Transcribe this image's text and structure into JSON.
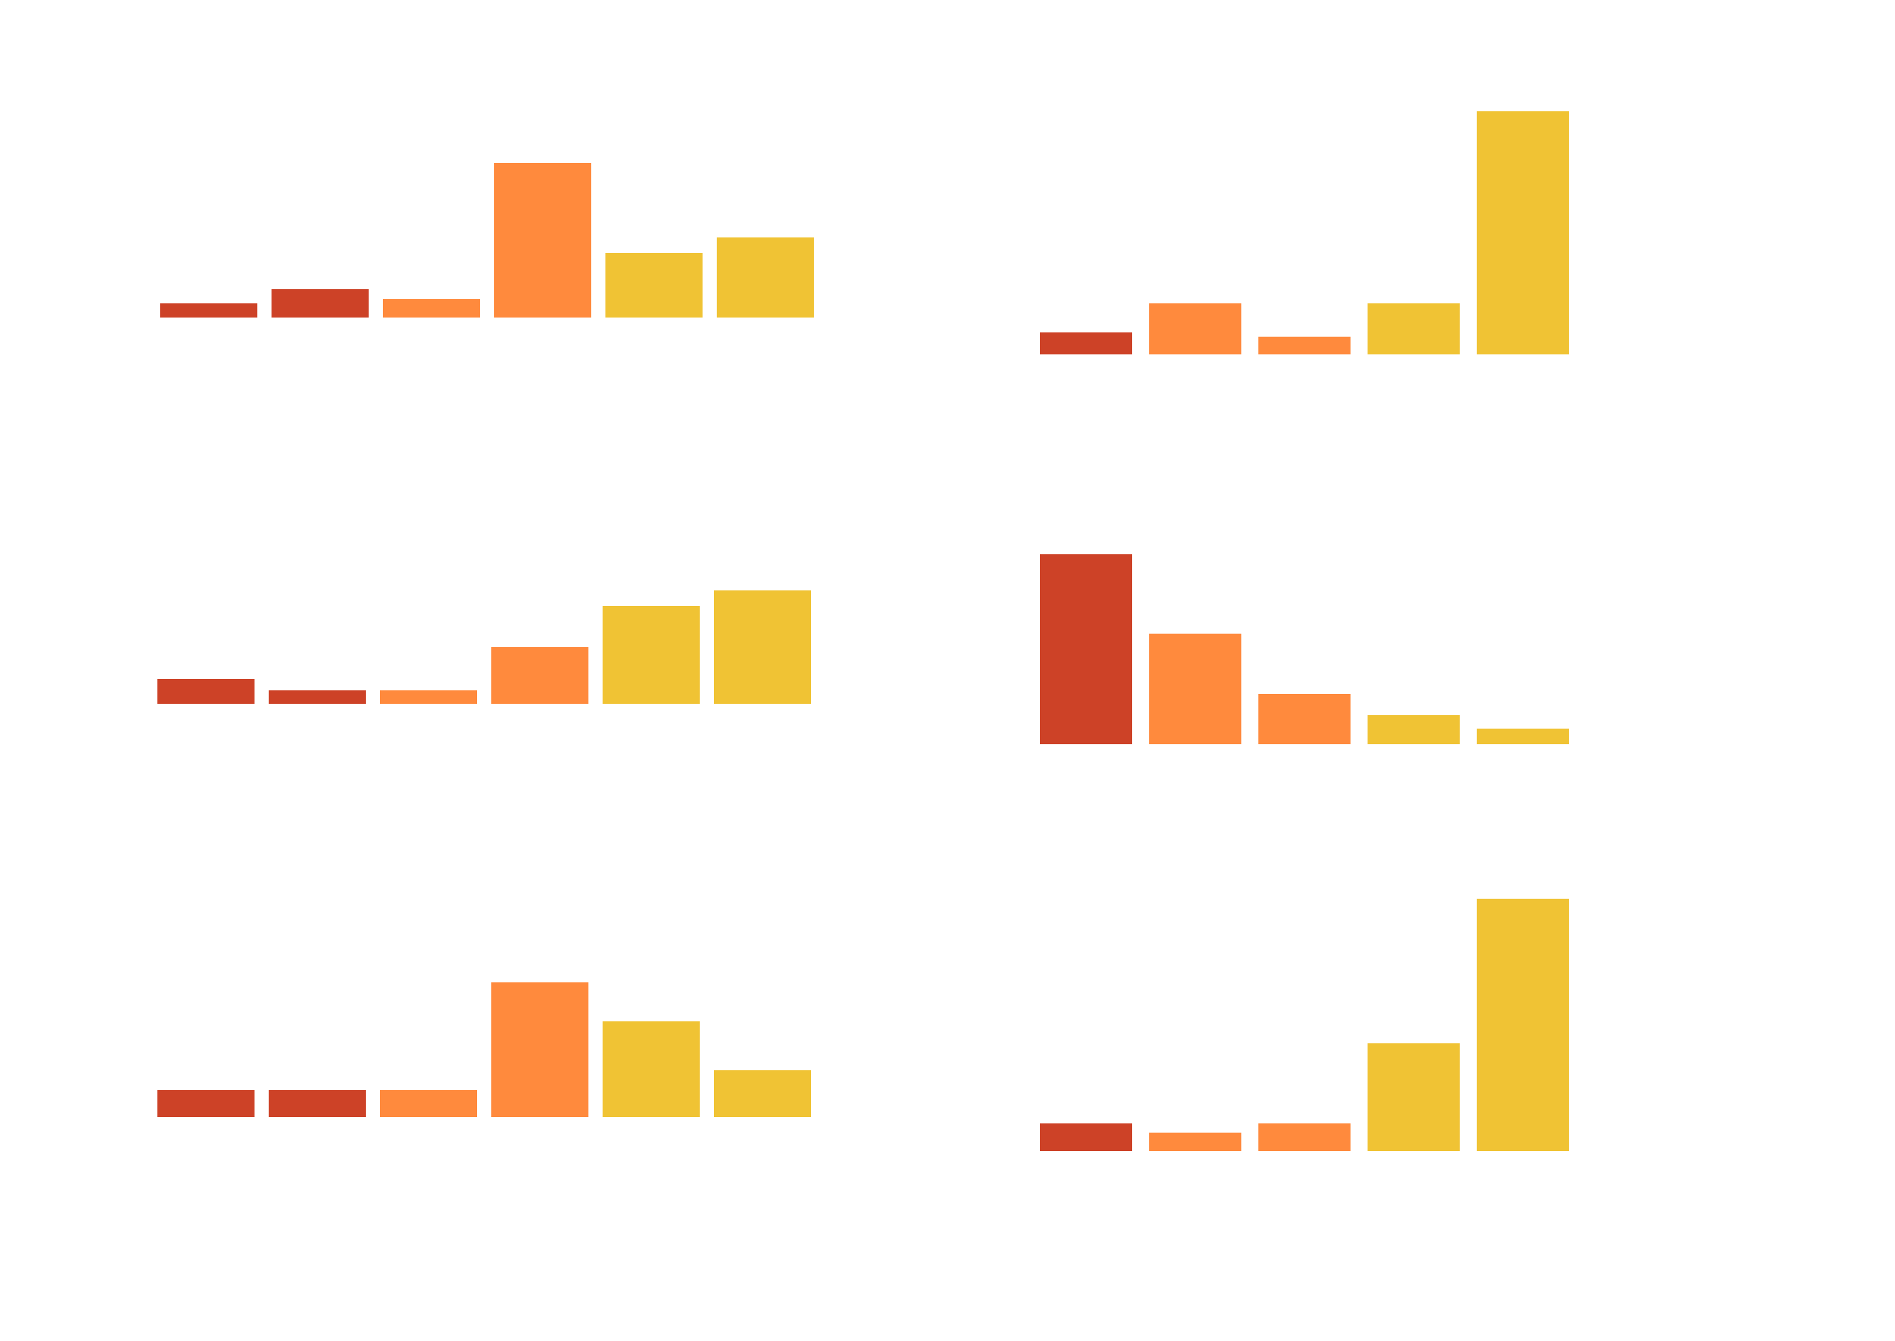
{
  "palette": {
    "red": "#cd4227",
    "orange": "#ff8a3d",
    "yellow": "#f0c334",
    "background": "#ffffff"
  },
  "chart_data": [
    {
      "type": "bar",
      "panel": "top-left",
      "title": "",
      "xlabel": "",
      "ylabel": "",
      "ylim": [
        0,
        11
      ],
      "axes_visible": false,
      "values": [
        1,
        2,
        1.3,
        11,
        4.6,
        5.7
      ],
      "colors": [
        "red",
        "red",
        "orange",
        "orange",
        "yellow",
        "yellow"
      ]
    },
    {
      "type": "bar",
      "panel": "top-right",
      "title": "",
      "xlabel": "",
      "ylabel": "",
      "ylim": [
        0,
        11
      ],
      "axes_visible": false,
      "values": [
        1,
        2.3,
        0.8,
        2.3,
        11
      ],
      "colors": [
        "red",
        "orange",
        "orange",
        "yellow",
        "yellow"
      ]
    },
    {
      "type": "bar",
      "panel": "middle-left",
      "title": "",
      "xlabel": "",
      "ylabel": "",
      "ylim": [
        0,
        11
      ],
      "axes_visible": false,
      "values": [
        2.2,
        1.2,
        1.2,
        5,
        8.6,
        10
      ],
      "colors": [
        "red",
        "red",
        "orange",
        "orange",
        "yellow",
        "yellow"
      ]
    },
    {
      "type": "bar",
      "panel": "middle-right",
      "title": "",
      "xlabel": "",
      "ylabel": "",
      "ylim": [
        0,
        11
      ],
      "axes_visible": false,
      "values": [
        11,
        6.4,
        2.9,
        1.7,
        0.9
      ],
      "colors": [
        "red",
        "orange",
        "orange",
        "yellow",
        "yellow"
      ]
    },
    {
      "type": "bar",
      "panel": "bottom-left",
      "title": "",
      "xlabel": "",
      "ylabel": "",
      "ylim": [
        0,
        11
      ],
      "axes_visible": false,
      "values": [
        2.2,
        2.2,
        2.2,
        11,
        7.8,
        3.8
      ],
      "colors": [
        "red",
        "red",
        "orange",
        "orange",
        "yellow",
        "yellow"
      ]
    },
    {
      "type": "bar",
      "panel": "bottom-right",
      "title": "",
      "xlabel": "",
      "ylabel": "",
      "ylim": [
        0,
        11
      ],
      "axes_visible": false,
      "values": [
        1.2,
        0.8,
        1.2,
        4.7,
        11
      ],
      "colors": [
        "red",
        "orange",
        "orange",
        "yellow",
        "yellow"
      ]
    }
  ]
}
